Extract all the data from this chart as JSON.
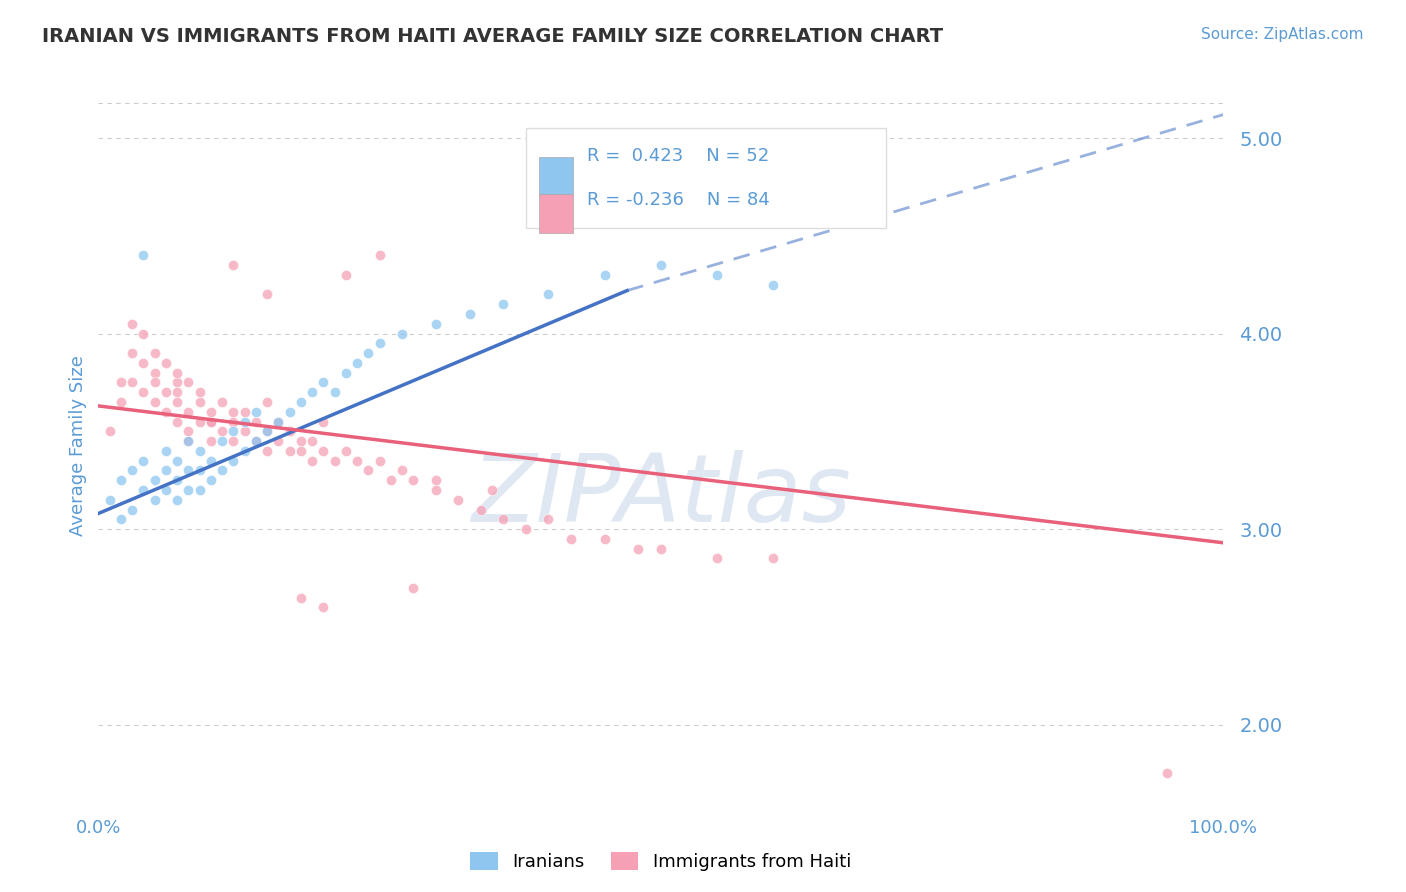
{
  "title": "IRANIAN VS IMMIGRANTS FROM HAITI AVERAGE FAMILY SIZE CORRELATION CHART",
  "source_text": "Source: ZipAtlas.com",
  "ylabel": "Average Family Size",
  "xmin": 0.0,
  "xmax": 1.0,
  "ymin": 1.6,
  "ymax": 5.25,
  "yticks": [
    2.0,
    3.0,
    4.0,
    5.0
  ],
  "color_iranians": "#8EC6F0",
  "color_haiti": "#F5A0B5",
  "color_trend_iranian": "#4472C4",
  "color_trend_haiti": "#E8607A",
  "legend_label_iranian": "Iranians",
  "legend_label_haiti": "Immigrants from Haiti",
  "watermark": "ZIPAtlas",
  "background_color": "#FFFFFF",
  "grid_color": "#CCCCCC",
  "title_color": "#333333",
  "axis_color": "#5B9BD5",
  "iranians_x": [
    0.01,
    0.02,
    0.02,
    0.03,
    0.03,
    0.04,
    0.04,
    0.05,
    0.05,
    0.06,
    0.06,
    0.06,
    0.07,
    0.07,
    0.07,
    0.08,
    0.08,
    0.08,
    0.09,
    0.09,
    0.09,
    0.1,
    0.1,
    0.11,
    0.11,
    0.12,
    0.12,
    0.13,
    0.13,
    0.14,
    0.14,
    0.15,
    0.16,
    0.17,
    0.18,
    0.19,
    0.2,
    0.21,
    0.22,
    0.23,
    0.24,
    0.25,
    0.27,
    0.3,
    0.33,
    0.36,
    0.4,
    0.45,
    0.5,
    0.55,
    0.6,
    0.04
  ],
  "iranians_y": [
    3.15,
    3.05,
    3.25,
    3.1,
    3.3,
    3.2,
    3.35,
    3.25,
    3.15,
    3.3,
    3.2,
    3.4,
    3.25,
    3.15,
    3.35,
    3.2,
    3.3,
    3.45,
    3.3,
    3.2,
    3.4,
    3.35,
    3.25,
    3.3,
    3.45,
    3.35,
    3.5,
    3.4,
    3.55,
    3.45,
    3.6,
    3.5,
    3.55,
    3.6,
    3.65,
    3.7,
    3.75,
    3.7,
    3.8,
    3.85,
    3.9,
    3.95,
    4.0,
    4.05,
    4.1,
    4.15,
    4.2,
    4.3,
    4.35,
    4.3,
    4.25,
    4.4
  ],
  "haiti_x": [
    0.01,
    0.02,
    0.02,
    0.03,
    0.03,
    0.03,
    0.04,
    0.04,
    0.04,
    0.05,
    0.05,
    0.05,
    0.05,
    0.06,
    0.06,
    0.06,
    0.07,
    0.07,
    0.07,
    0.07,
    0.08,
    0.08,
    0.08,
    0.09,
    0.09,
    0.09,
    0.1,
    0.1,
    0.1,
    0.11,
    0.11,
    0.12,
    0.12,
    0.12,
    0.13,
    0.13,
    0.14,
    0.14,
    0.15,
    0.15,
    0.15,
    0.16,
    0.16,
    0.17,
    0.17,
    0.18,
    0.18,
    0.19,
    0.19,
    0.2,
    0.2,
    0.21,
    0.22,
    0.23,
    0.24,
    0.25,
    0.26,
    0.27,
    0.28,
    0.3,
    0.32,
    0.34,
    0.36,
    0.38,
    0.4,
    0.42,
    0.45,
    0.48,
    0.5,
    0.55,
    0.6,
    0.22,
    0.25,
    0.15,
    0.12,
    0.08,
    0.1,
    0.07,
    0.3,
    0.35,
    0.18,
    0.2,
    0.28,
    0.95
  ],
  "haiti_y": [
    3.5,
    3.75,
    3.65,
    3.9,
    4.05,
    3.75,
    3.85,
    3.7,
    4.0,
    3.8,
    3.65,
    3.9,
    3.75,
    3.7,
    3.85,
    3.6,
    3.75,
    3.55,
    3.8,
    3.65,
    3.6,
    3.75,
    3.5,
    3.65,
    3.55,
    3.7,
    3.6,
    3.45,
    3.55,
    3.5,
    3.65,
    3.55,
    3.45,
    3.6,
    3.5,
    3.6,
    3.45,
    3.55,
    3.4,
    3.5,
    3.65,
    3.45,
    3.55,
    3.4,
    3.5,
    3.45,
    3.4,
    3.45,
    3.35,
    3.4,
    3.55,
    3.35,
    3.4,
    3.35,
    3.3,
    3.35,
    3.25,
    3.3,
    3.25,
    3.2,
    3.15,
    3.1,
    3.05,
    3.0,
    3.05,
    2.95,
    2.95,
    2.9,
    2.9,
    2.85,
    2.85,
    4.3,
    4.4,
    4.2,
    4.35,
    3.45,
    3.55,
    3.7,
    3.25,
    3.2,
    2.65,
    2.6,
    2.7,
    1.75
  ],
  "trend_iranian_x0": 0.0,
  "trend_iranian_x1": 0.47,
  "trend_iranian_y0": 3.08,
  "trend_iranian_y1": 4.22,
  "trend_iranian_xdash0": 0.47,
  "trend_iranian_xdash1": 1.0,
  "trend_iranian_ydash0": 4.22,
  "trend_iranian_ydash1": 5.12,
  "trend_haiti_x0": 0.0,
  "trend_haiti_x1": 1.0,
  "trend_haiti_y0": 3.63,
  "trend_haiti_y1": 2.93,
  "legend_r1": "R =  0.423",
  "legend_n1": "N = 52",
  "legend_r2": "R = -0.236",
  "legend_n2": "N = 84"
}
